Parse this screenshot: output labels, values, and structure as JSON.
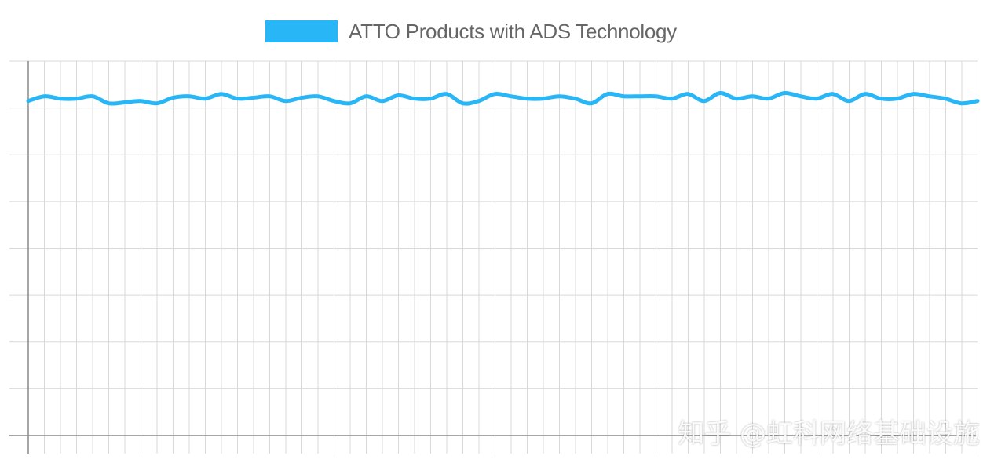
{
  "watermark": "知乎 @虹科网络基础设施",
  "chart_data": {
    "type": "line",
    "title": "",
    "xlabel": "",
    "ylabel": "",
    "grid": true,
    "legend_position": "top-center",
    "colors": {
      "series": "#29b6f6",
      "grid": "#d9d9d9",
      "axis": "#888888"
    },
    "ylim": [
      0,
      8
    ],
    "x": [
      0,
      1,
      2,
      3,
      4,
      5,
      6,
      7,
      8,
      9,
      10,
      11,
      12,
      13,
      14,
      15,
      16,
      17,
      18,
      19,
      20,
      21,
      22,
      23,
      24,
      25,
      26,
      27,
      28,
      29,
      30,
      31,
      32,
      33,
      34,
      35,
      36,
      37,
      38,
      39,
      40,
      41,
      42,
      43,
      44,
      45,
      46,
      47,
      48,
      49,
      50,
      51,
      52,
      53,
      54,
      55,
      56,
      57,
      58,
      59
    ],
    "series": [
      {
        "name": "ATTO Products with ADS Technology",
        "values": [
          7.15,
          7.25,
          7.2,
          7.2,
          7.25,
          7.1,
          7.12,
          7.15,
          7.1,
          7.22,
          7.25,
          7.2,
          7.3,
          7.2,
          7.22,
          7.25,
          7.15,
          7.22,
          7.25,
          7.15,
          7.1,
          7.25,
          7.15,
          7.27,
          7.2,
          7.2,
          7.3,
          7.1,
          7.15,
          7.3,
          7.25,
          7.2,
          7.2,
          7.25,
          7.2,
          7.1,
          7.3,
          7.25,
          7.25,
          7.25,
          7.2,
          7.3,
          7.15,
          7.32,
          7.2,
          7.25,
          7.2,
          7.32,
          7.25,
          7.2,
          7.3,
          7.15,
          7.3,
          7.2,
          7.2,
          7.3,
          7.25,
          7.2,
          7.1,
          7.15
        ]
      }
    ]
  }
}
